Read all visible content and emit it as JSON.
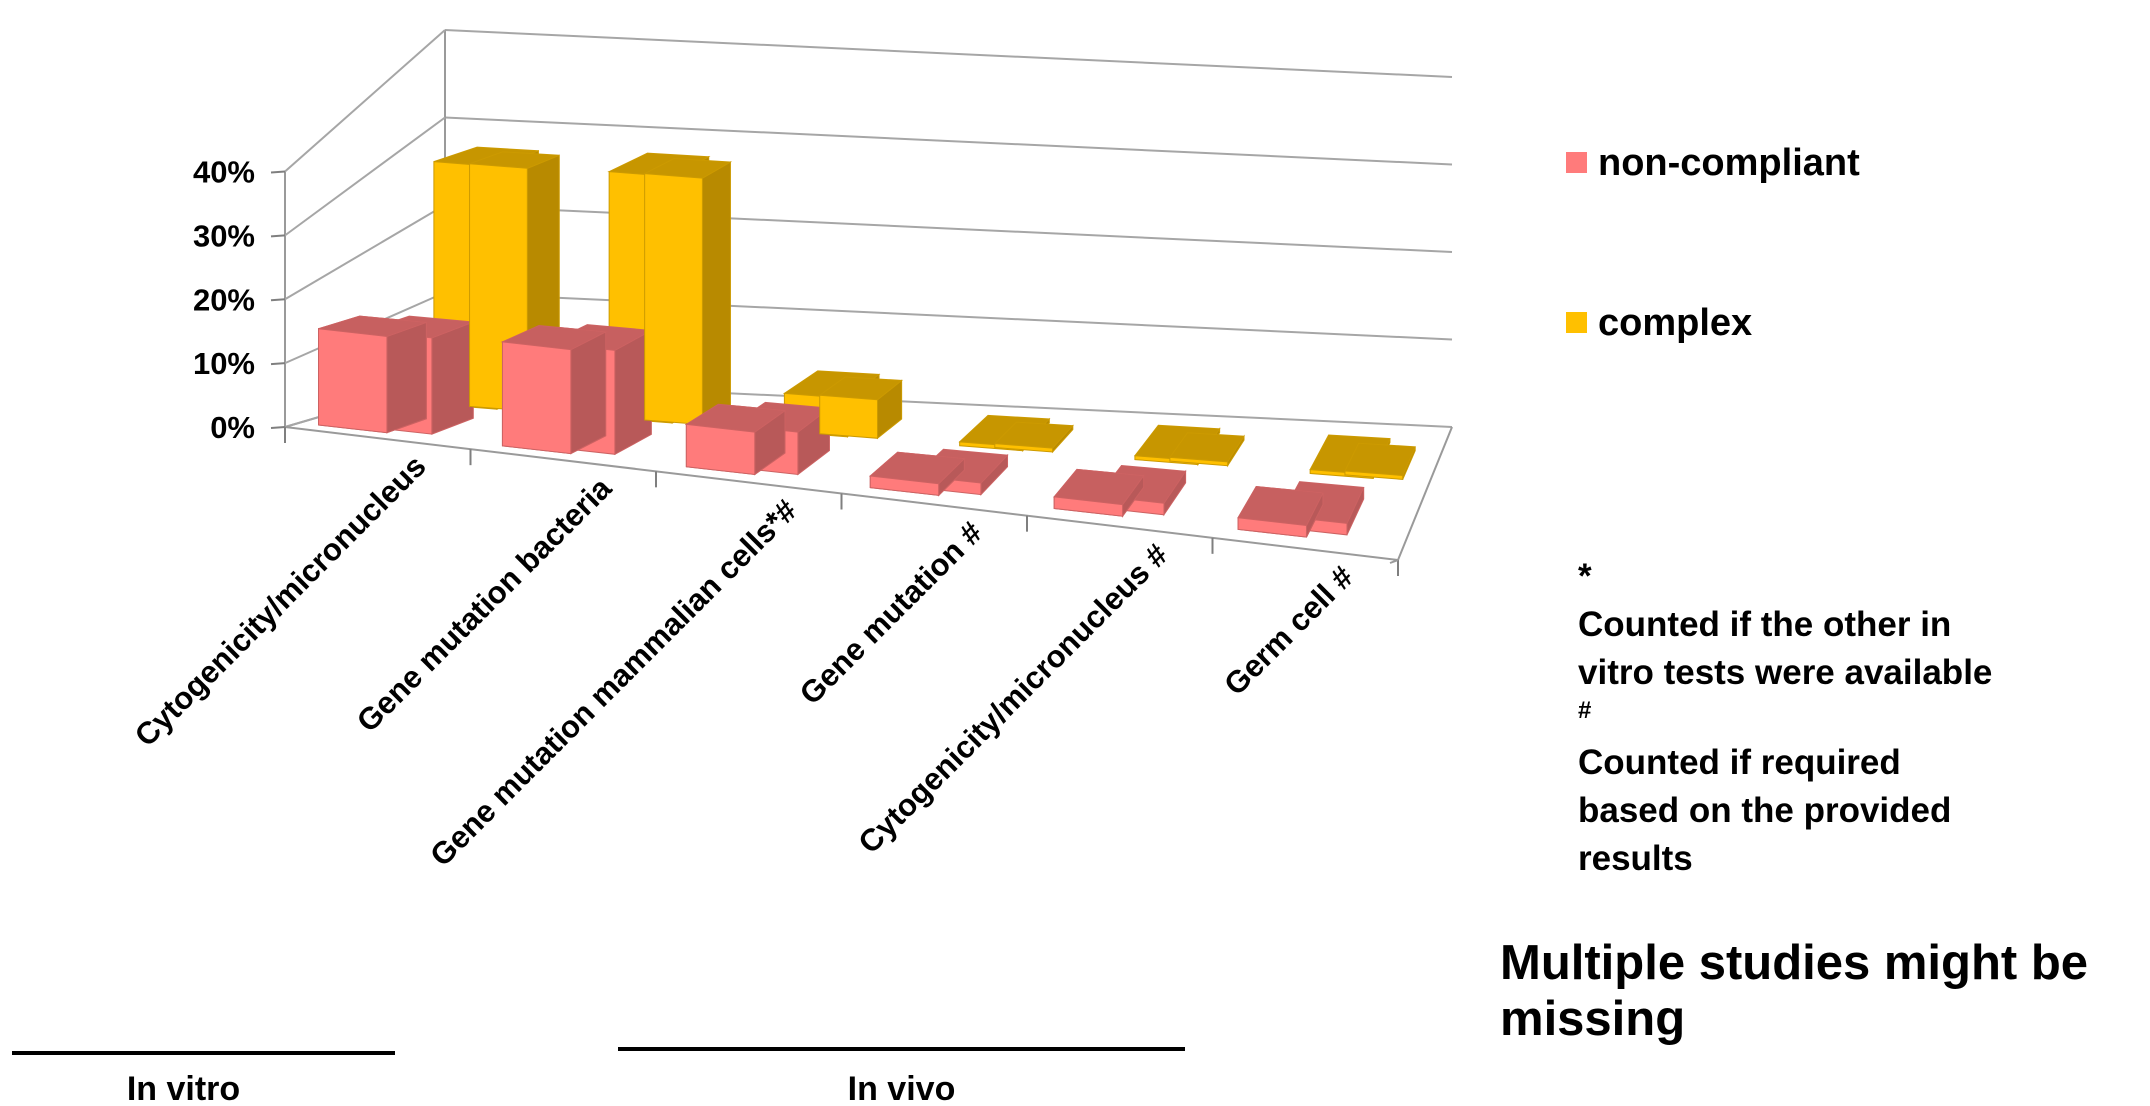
{
  "chart_data": {
    "type": "bar",
    "title": "",
    "xlabel": "",
    "ylabel": "",
    "ylim": [
      0,
      40
    ],
    "y_ticks": [
      "0%",
      "10%",
      "20%",
      "30%",
      "40%"
    ],
    "categories": [
      "Cytogenicity/micronucleus",
      "Gene mutation bacteria",
      "Gene mutation mammalian cells*#",
      "Gene mutation #",
      "Cytogenicity/micronucleus #",
      "Germ cell #"
    ],
    "series": [
      {
        "name": "non-compliant",
        "color": "#FF7B7B",
        "values": [
          12.5,
          13.5,
          5.5,
          1.5,
          1.5,
          1.5
        ]
      },
      {
        "name": "complex",
        "color": "#FFC000",
        "values": [
          31.5,
          32.0,
          5.0,
          0.5,
          0.5,
          0.5
        ]
      }
    ],
    "legend": {
      "placement": "right"
    },
    "grid": true,
    "groups": [
      {
        "label": "In vitro",
        "categories": [
          0,
          1,
          2
        ]
      },
      {
        "label": "In vivo",
        "categories": [
          3,
          4,
          5
        ]
      }
    ]
  },
  "notes": {
    "star_symbol": "*",
    "star_text": "Counted if the other in\nvitro tests were available",
    "hash_symbol": "#",
    "hash_text": "Counted if required\nbased on the provided\nresults",
    "missing_text": "Multiple studies might be missing"
  }
}
